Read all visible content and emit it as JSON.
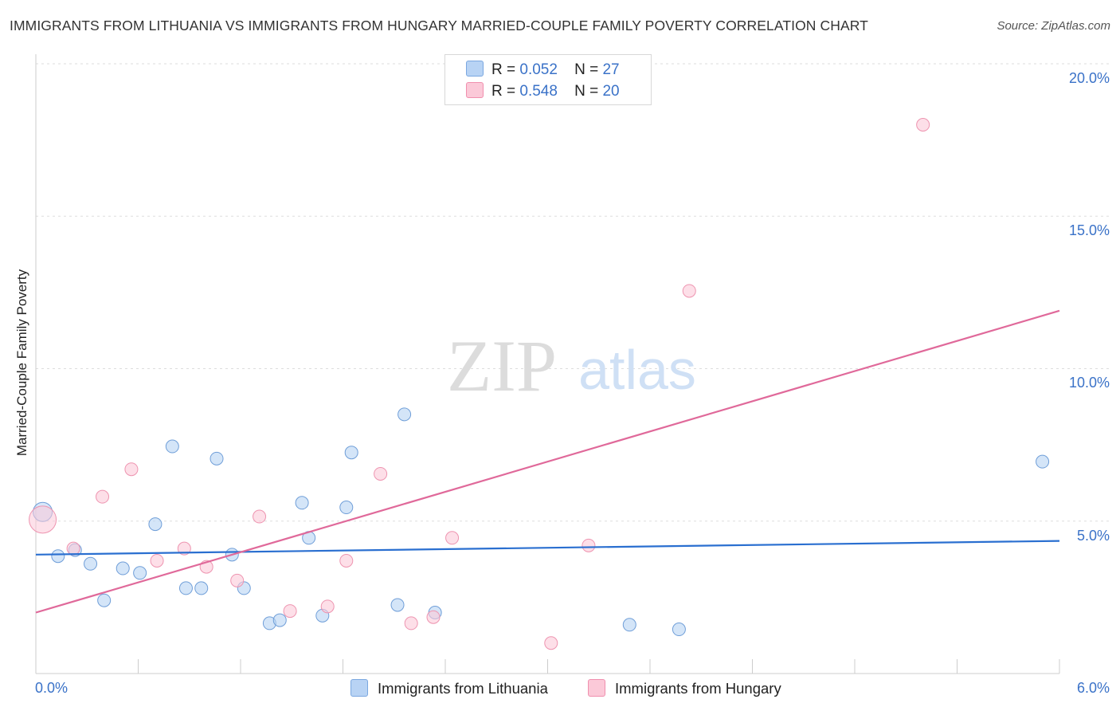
{
  "title": "IMMIGRANTS FROM LITHUANIA VS IMMIGRANTS FROM HUNGARY MARRIED-COUPLE FAMILY POVERTY CORRELATION CHART",
  "source": "Source: ZipAtlas.com",
  "watermark": {
    "zip": "ZIP",
    "atlas": "atlas"
  },
  "legend": {
    "r_label": "R =",
    "n_label": "N =",
    "rows": [
      {
        "r": "0.052",
        "n": "27",
        "color": "#b8d3f4",
        "border": "#7aa7e0"
      },
      {
        "r": "0.548",
        "n": "20",
        "color": "#fbc9d8",
        "border": "#f08fae"
      }
    ]
  },
  "bottom_legend": [
    "Immigrants from Lithuania",
    "Immigrants from Hungary"
  ],
  "chart_data": {
    "type": "scatter",
    "title": "IMMIGRANTS FROM LITHUANIA VS IMMIGRANTS FROM HUNGARY MARRIED-COUPLE FAMILY POVERTY CORRELATION CHART",
    "xlabel": "",
    "ylabel": "Married-Couple Family Poverty",
    "xlim": [
      0,
      6
    ],
    "ylim": [
      0,
      20.5
    ],
    "x_tick_labels": [
      "0.0%",
      "6.0%"
    ],
    "y_ticks": [
      5,
      10,
      15,
      20
    ],
    "y_tick_labels": [
      "5.0%",
      "10.0%",
      "15.0%",
      "20.0%"
    ],
    "series": [
      {
        "name": "Immigrants from Lithuania",
        "color": "#b8d3f4",
        "stroke": "#6f9ed8",
        "line_color": "#2a6fd0",
        "trend": [
          [
            0,
            3.9
          ],
          [
            6,
            4.35
          ]
        ],
        "points": [
          [
            0.04,
            5.3
          ],
          [
            0.13,
            3.85
          ],
          [
            0.23,
            4.05
          ],
          [
            0.32,
            3.6
          ],
          [
            0.4,
            2.4
          ],
          [
            0.51,
            3.45
          ],
          [
            0.61,
            3.3
          ],
          [
            0.7,
            4.9
          ],
          [
            0.8,
            7.45
          ],
          [
            0.88,
            2.8
          ],
          [
            0.97,
            2.8
          ],
          [
            1.06,
            7.05
          ],
          [
            1.15,
            3.9
          ],
          [
            1.22,
            2.8
          ],
          [
            1.37,
            1.65
          ],
          [
            1.43,
            1.75
          ],
          [
            1.56,
            5.6
          ],
          [
            1.6,
            4.45
          ],
          [
            1.68,
            1.9
          ],
          [
            1.82,
            5.45
          ],
          [
            1.85,
            7.25
          ],
          [
            2.12,
            2.25
          ],
          [
            2.16,
            8.5
          ],
          [
            2.34,
            2.0
          ],
          [
            3.48,
            1.6
          ],
          [
            3.77,
            1.45
          ],
          [
            5.9,
            6.95
          ]
        ]
      },
      {
        "name": "Immigrants from Hungary",
        "color": "#fbc9d8",
        "stroke": "#ee94b0",
        "line_color": "#e0699a",
        "trend": [
          [
            0,
            2.0
          ],
          [
            6,
            11.9
          ]
        ],
        "points": [
          [
            0.04,
            5.05
          ],
          [
            0.22,
            4.1
          ],
          [
            0.39,
            5.8
          ],
          [
            0.56,
            6.7
          ],
          [
            0.71,
            3.7
          ],
          [
            0.87,
            4.1
          ],
          [
            1.0,
            3.5
          ],
          [
            1.18,
            3.05
          ],
          [
            1.31,
            5.15
          ],
          [
            1.49,
            2.05
          ],
          [
            1.71,
            2.2
          ],
          [
            1.82,
            3.7
          ],
          [
            2.02,
            6.55
          ],
          [
            2.2,
            1.65
          ],
          [
            2.33,
            1.85
          ],
          [
            2.44,
            4.45
          ],
          [
            3.02,
            1.0
          ],
          [
            3.24,
            4.2
          ],
          [
            3.83,
            12.55
          ],
          [
            5.2,
            18.0
          ]
        ]
      }
    ]
  }
}
